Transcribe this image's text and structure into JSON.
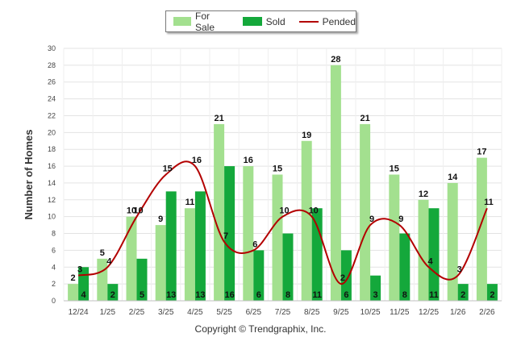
{
  "chart_data": {
    "type": "bar",
    "ylabel": "Number of Homes",
    "xlabel": "",
    "ylim": [
      0,
      30
    ],
    "yticks": [
      0,
      2,
      4,
      6,
      8,
      10,
      12,
      14,
      16,
      18,
      20,
      22,
      24,
      26,
      28,
      30
    ],
    "categories": [
      "12/24",
      "1/25",
      "2/25",
      "3/25",
      "4/25",
      "5/25",
      "6/25",
      "7/25",
      "8/25",
      "9/25",
      "10/25",
      "11/25",
      "12/25",
      "1/26",
      "2/26"
    ],
    "series": [
      {
        "name": "For Sale",
        "kind": "bar",
        "color": "#a3e08f",
        "values": [
          2,
          5,
          10,
          9,
          11,
          21,
          16,
          15,
          19,
          28,
          21,
          15,
          12,
          14,
          17
        ]
      },
      {
        "name": "Sold",
        "kind": "bar",
        "color": "#14a83b",
        "values": [
          4,
          2,
          5,
          13,
          13,
          16,
          6,
          8,
          11,
          6,
          3,
          8,
          11,
          2,
          2
        ]
      },
      {
        "name": "Pended",
        "kind": "line",
        "color": "#b30000",
        "values": [
          3,
          4,
          10,
          15,
          16,
          7,
          6,
          10,
          10,
          2,
          9,
          9,
          4,
          3,
          11
        ]
      }
    ],
    "grid": true,
    "legend_position": "top-center"
  },
  "legend": [
    {
      "label": "For Sale",
      "color": "#a3e08f",
      "kind": "bar"
    },
    {
      "label": "Sold",
      "color": "#14a83b",
      "kind": "bar"
    },
    {
      "label": "Pended",
      "color": "#b30000",
      "kind": "line"
    }
  ],
  "footer": {
    "copyright": "Copyright © Trendgraphix, Inc."
  }
}
